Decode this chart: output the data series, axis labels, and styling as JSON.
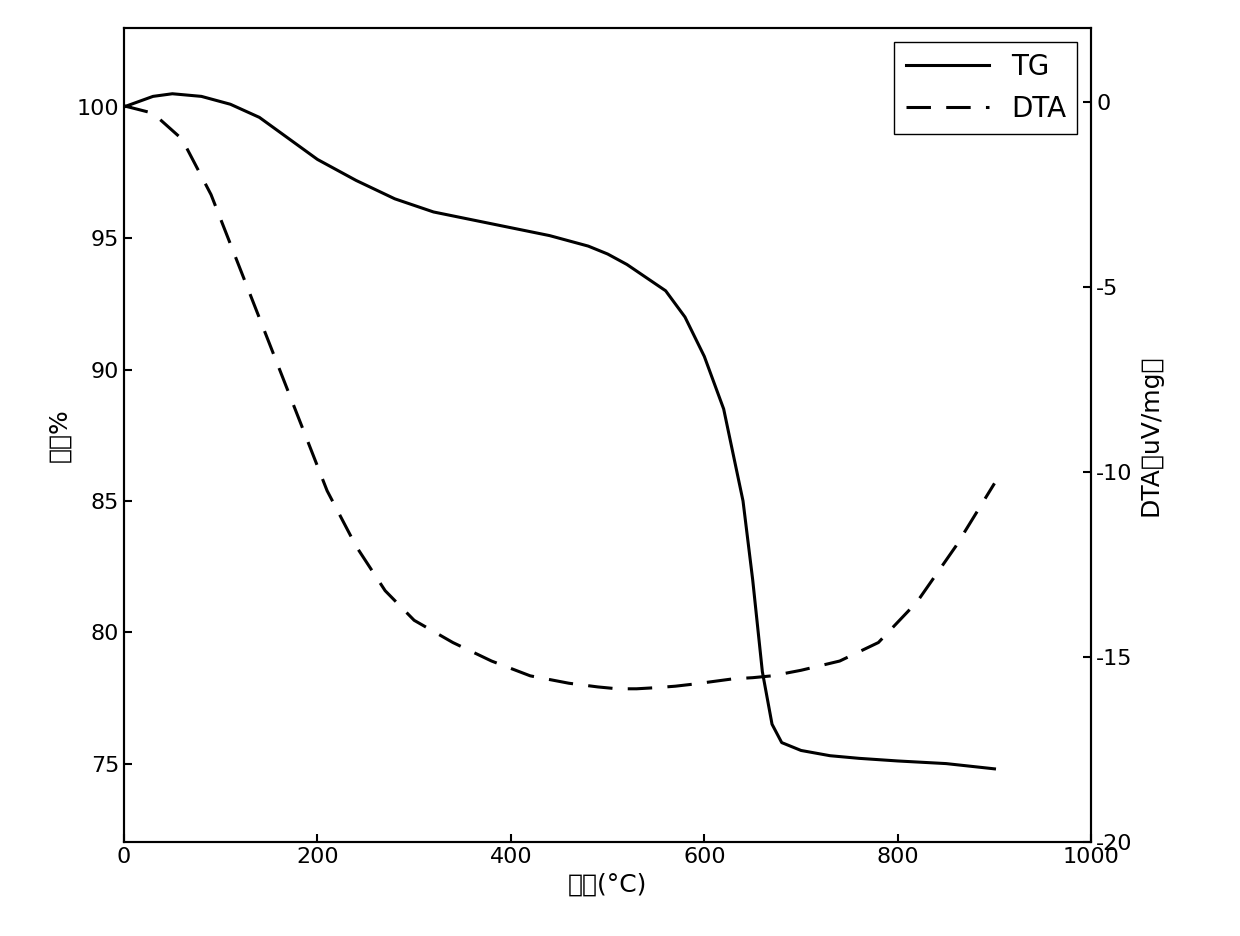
{
  "title": "",
  "xlabel": "温度(°C)",
  "ylabel_left": "失重%",
  "ylabel_right": "DTA（uV/mg）",
  "xlim": [
    0,
    1000
  ],
  "ylim_left": [
    72,
    103
  ],
  "ylim_right": [
    -20,
    2
  ],
  "xticks": [
    0,
    200,
    400,
    600,
    800,
    1000
  ],
  "yticks_left": [
    75,
    80,
    85,
    90,
    95,
    100
  ],
  "yticks_right": [
    -20,
    -15,
    -10,
    -5,
    0
  ],
  "background_color": "#ffffff",
  "tg_color": "#000000",
  "dta_color": "#000000",
  "tg_x": [
    0,
    30,
    50,
    80,
    110,
    140,
    170,
    200,
    240,
    280,
    320,
    360,
    400,
    440,
    480,
    500,
    520,
    540,
    560,
    580,
    600,
    620,
    640,
    650,
    660,
    670,
    680,
    700,
    730,
    760,
    800,
    850,
    900
  ],
  "tg_y": [
    100.0,
    100.4,
    100.5,
    100.4,
    100.1,
    99.6,
    98.8,
    98.0,
    97.2,
    96.5,
    96.0,
    95.7,
    95.4,
    95.1,
    94.7,
    94.4,
    94.0,
    93.5,
    93.0,
    92.0,
    90.5,
    88.5,
    85.0,
    82.0,
    78.5,
    76.5,
    75.8,
    75.5,
    75.3,
    75.2,
    75.1,
    75.0,
    74.8
  ],
  "dta_x": [
    0,
    30,
    60,
    90,
    120,
    150,
    180,
    210,
    240,
    270,
    300,
    340,
    380,
    420,
    460,
    490,
    510,
    530,
    550,
    570,
    590,
    610,
    630,
    650,
    670,
    700,
    740,
    780,
    820,
    860,
    900
  ],
  "dta_y": [
    -0.1,
    -0.3,
    -1.0,
    -2.5,
    -4.5,
    -6.5,
    -8.5,
    -10.5,
    -12.0,
    -13.2,
    -14.0,
    -14.6,
    -15.1,
    -15.5,
    -15.7,
    -15.8,
    -15.85,
    -15.85,
    -15.82,
    -15.78,
    -15.72,
    -15.65,
    -15.58,
    -15.55,
    -15.5,
    -15.35,
    -15.1,
    -14.6,
    -13.5,
    -12.0,
    -10.3
  ],
  "legend_loc": "upper right",
  "fontsize": 18,
  "tick_fontsize": 16,
  "linewidth": 2.2
}
